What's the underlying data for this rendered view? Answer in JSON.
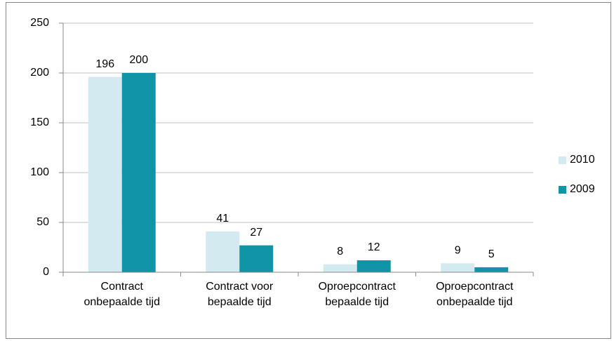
{
  "chart_data": {
    "type": "bar",
    "categories": [
      "Contract\nonbepaalde tijd",
      "Contract voor\nbepaalde tijd",
      "Oproepcontract\nbepaalde tijd",
      "Oproepcontract\nonbepaalde tijd"
    ],
    "series": [
      {
        "name": "2010",
        "color": "#d3eaf0",
        "values": [
          196,
          41,
          8,
          9
        ]
      },
      {
        "name": "2009",
        "color": "#0f95a7",
        "values": [
          200,
          27,
          12,
          5
        ]
      }
    ],
    "ylim": [
      0,
      250
    ],
    "yticks": [
      0,
      50,
      100,
      150,
      200,
      250
    ],
    "grid": true,
    "legend": "right"
  }
}
